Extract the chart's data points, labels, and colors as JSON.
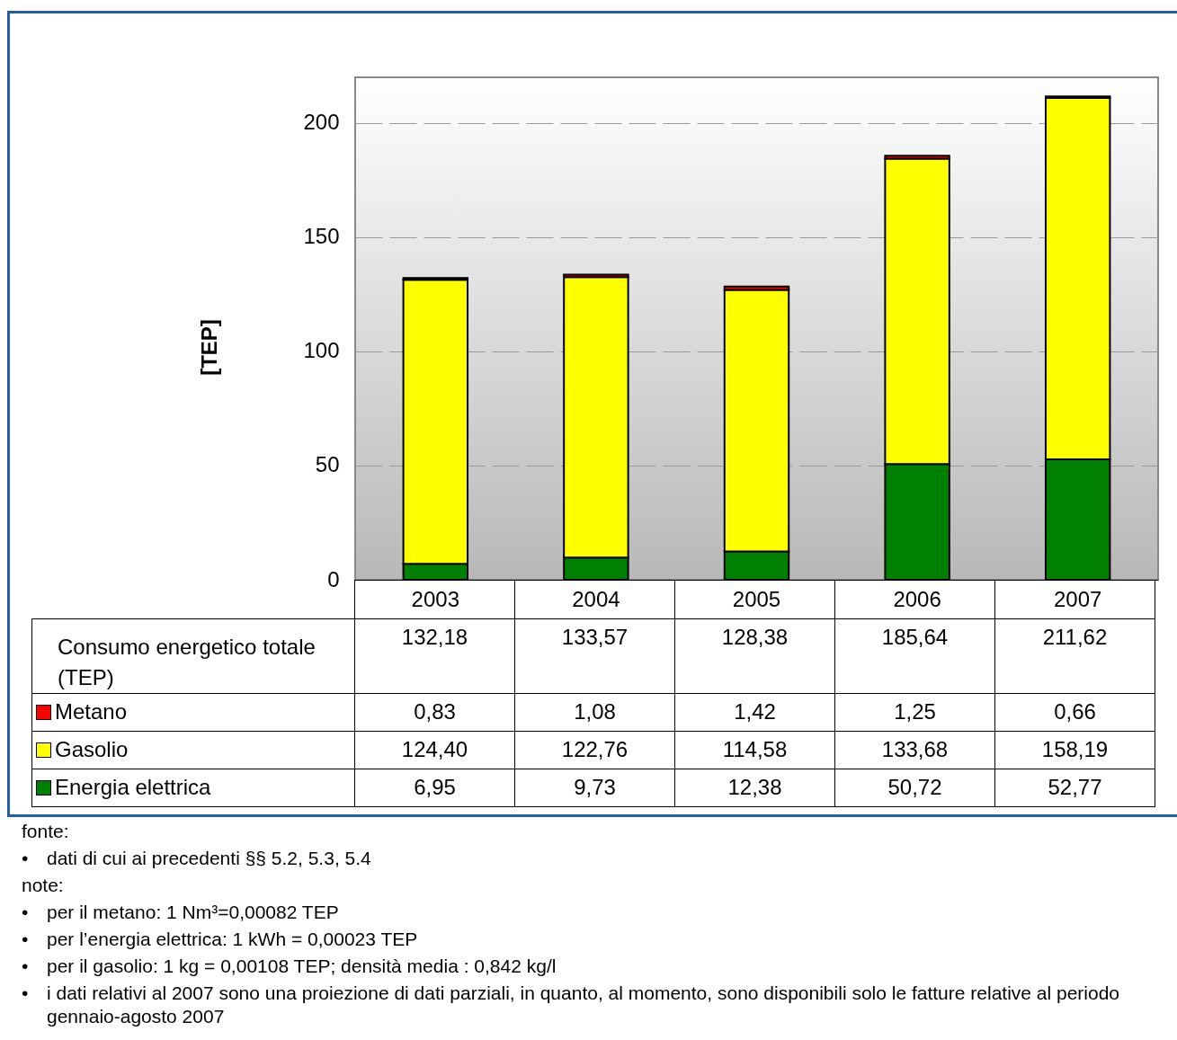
{
  "chart_data": {
    "type": "bar",
    "stacked": true,
    "ylabel": "[TEP]",
    "categories": [
      "2003",
      "2004",
      "2005",
      "2006",
      "2007"
    ],
    "series": [
      {
        "name": "Energia elettrica",
        "color": "#008000",
        "values": [
          6.95,
          9.73,
          12.38,
          50.72,
          52.77
        ],
        "value_labels": [
          "6,95",
          "9,73",
          "12,38",
          "50,72",
          "52,77"
        ]
      },
      {
        "name": "Gasolio",
        "color": "#ffff00",
        "values": [
          124.4,
          122.76,
          114.58,
          133.68,
          158.19
        ],
        "value_labels": [
          "124,40",
          "122,76",
          "114,58",
          "133,68",
          "158,19"
        ]
      },
      {
        "name": "Metano",
        "color": "#ff0000",
        "values": [
          0.83,
          1.08,
          1.42,
          1.25,
          0.66
        ],
        "value_labels": [
          "0,83",
          "1,08",
          "1,42",
          "1,25",
          "0,66"
        ]
      }
    ],
    "totals": [
      "132,18",
      "133,57",
      "128,38",
      "185,64",
      "211,62"
    ],
    "ylim": [
      0,
      220
    ],
    "yticks": [
      0,
      50,
      100,
      150,
      200
    ],
    "grid": "y",
    "legend": "bottom",
    "annotations": [
      "Consumo energetico totale (TEP)",
      "fonte:",
      "•\tdati di cui ai precedenti §§ 5.2, 5.3, 5.4",
      "note:",
      "•\tper il metano: 1 Nm³=0,00082 TEP",
      "•\tper l’energia elettrica: 1 kWh = 0,00023 TEP",
      "•\tper il gasolio: 1 kg = 0,00108 TEP; densità media : 0,842 kg/l",
      "•\ti dati relativi al 2007 sono una proiezione di dati parziali, in quanto, al momento, sono disponibili solo le fatture relative al periodo gennaio-agosto 2007"
    ]
  }
}
